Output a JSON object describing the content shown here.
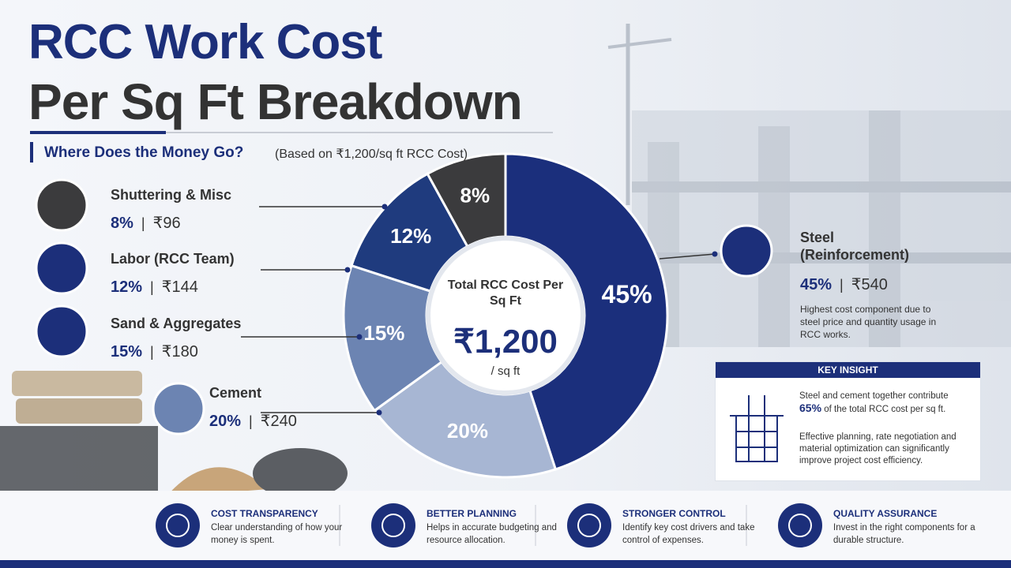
{
  "header": {
    "title_line1": "RCC Work Cost",
    "title_line2": "Per Sq Ft Breakdown",
    "subtitle": "Where Does the Money Go?",
    "subtitle_note": "(Based on ₹1,200/sq ft RCC Cost)"
  },
  "chart_data": {
    "type": "pie",
    "donut": true,
    "categories": [
      "Steel (Reinforcement)",
      "Cement",
      "Sand & Aggregates",
      "Labor (RCC Team)",
      "Shuttering & Misc"
    ],
    "values": [
      45,
      20,
      15,
      12,
      8
    ],
    "value_labels": [
      "45%",
      "20%",
      "15%",
      "12%",
      "8%"
    ],
    "amount_labels": [
      "₹540",
      "₹240",
      "₹180",
      "₹144",
      "₹96"
    ],
    "colors": [
      "#1b2f7c",
      "#a7b6d3",
      "#6c84b2",
      "#1f3b7e",
      "#3b3b3d"
    ],
    "center_title": "Total RCC Cost Per Sq Ft",
    "center_value": "₹1,200",
    "center_unit": "/ sq ft"
  },
  "steel_note": "Highest cost component due to steel price and quantity usage in RCC works.",
  "key_insight": {
    "title": "KEY INSIGHT",
    "text1_before": "Steel and cement together contribute",
    "highlight": "65%",
    "text1_after": "of the total RCC cost per sq ft.",
    "text2": "Effective planning, rate negotiation and material optimization can significantly improve project cost efficiency."
  },
  "features": [
    {
      "title": "COST TRANSPARENCY",
      "text": "Clear understanding of how your money is spent."
    },
    {
      "title": "BETTER PLANNING",
      "text": "Helps in accurate budgeting and resource allocation."
    },
    {
      "title": "STRONGER CONTROL",
      "text": "Identify key cost drivers and take control of expenses."
    },
    {
      "title": "QUALITY ASSURANCE",
      "text": "Invest in the right components for a durable structure."
    }
  ]
}
